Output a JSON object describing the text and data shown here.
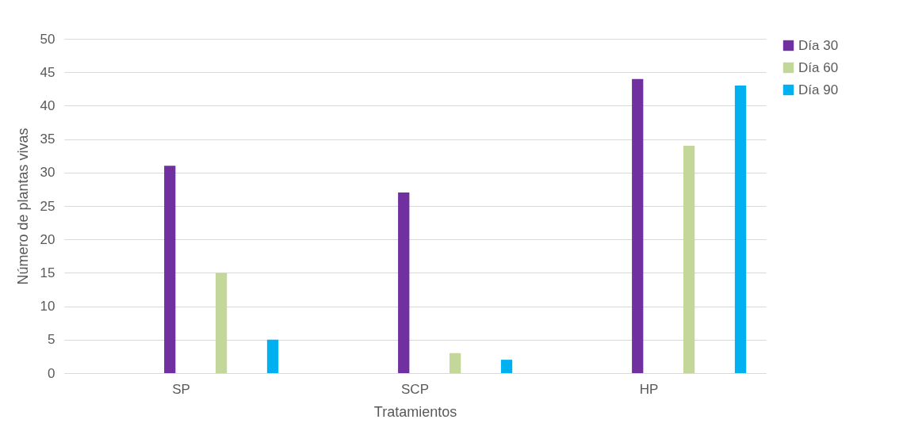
{
  "chart_data": {
    "type": "bar",
    "xlabel": "Tratamientos",
    "ylabel": "Número de plantas vivas",
    "categories": [
      "SP",
      "SCP",
      "HP"
    ],
    "series": [
      {
        "name": "Día 30",
        "color": "#7030a0",
        "values": [
          31,
          27,
          44
        ]
      },
      {
        "name": "Día 60",
        "color": "#c4d79b",
        "values": [
          15,
          3,
          34
        ]
      },
      {
        "name": "Día 90",
        "color": "#00b0f0",
        "values": [
          5,
          2,
          43
        ]
      }
    ],
    "ylim": [
      0,
      50
    ],
    "yticks": [
      0,
      5,
      10,
      15,
      20,
      25,
      30,
      35,
      40,
      45,
      50
    ],
    "grid": "y",
    "legend": "right"
  }
}
